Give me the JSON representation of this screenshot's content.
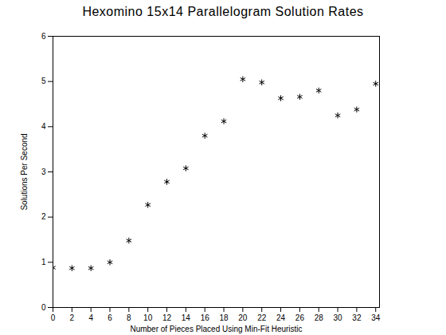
{
  "chart_data": {
    "type": "scatter",
    "title": "Hexomino 15x14 Parallelogram Solution Rates",
    "x_label": "Number of Pieces Placed Using Min-Fit Heuristic",
    "y_label": "Solutions Per Second",
    "x": [
      0,
      2,
      4,
      6,
      8,
      10,
      12,
      14,
      16,
      18,
      20,
      22,
      24,
      26,
      28,
      30,
      32,
      34
    ],
    "values": [
      0.88,
      0.87,
      0.87,
      1.0,
      1.48,
      2.27,
      2.78,
      3.08,
      3.8,
      4.12,
      5.05,
      4.98,
      4.63,
      4.66,
      4.8,
      4.25,
      4.38,
      4.95
    ],
    "color": "#000000",
    "marker": "asterisk",
    "xlim": [
      0,
      34.4
    ],
    "ylim": [
      0,
      6
    ],
    "xticks": [
      0,
      2,
      4,
      6,
      8,
      10,
      12,
      14,
      16,
      18,
      20,
      22,
      24,
      26,
      28,
      30,
      32,
      34
    ],
    "yticks": [
      0,
      1,
      2,
      3,
      4,
      5,
      6
    ],
    "grid": false
  }
}
